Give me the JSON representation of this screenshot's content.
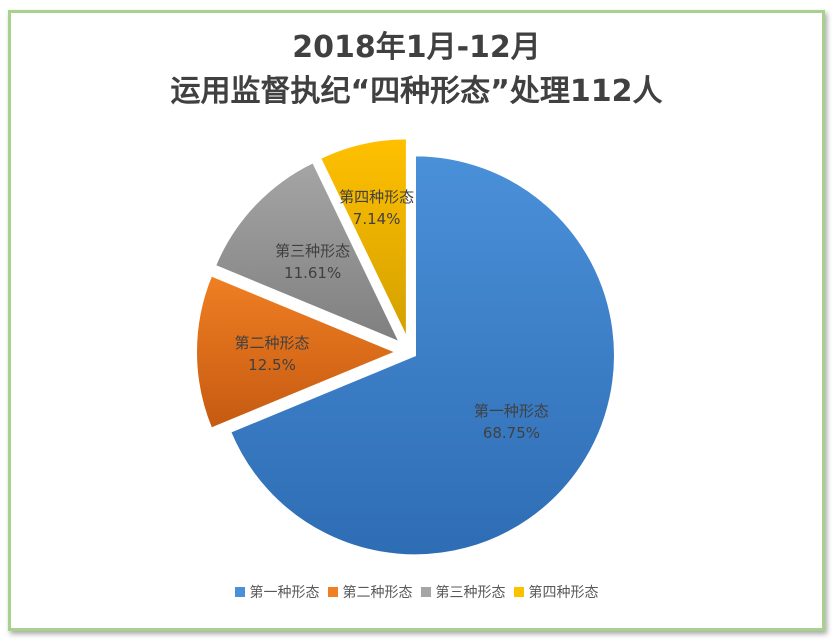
{
  "chart_data": {
    "type": "pie",
    "title": [
      "2018年1月-12月",
      "运用监督执纪“四种形态”处理112人"
    ],
    "categories": [
      "第一种形态",
      "第二种形态",
      "第三种形态",
      "第四种形态"
    ],
    "values": [
      68.75,
      12.5,
      11.61,
      7.14
    ],
    "data_labels": [
      "68.75%",
      "12.5%",
      "11.61%",
      "7.14%"
    ],
    "colors": [
      "#4a90d9",
      "#f07f23",
      "#a5a5a5",
      "#ffc000"
    ],
    "legend_position": "bottom",
    "exploded": true
  }
}
